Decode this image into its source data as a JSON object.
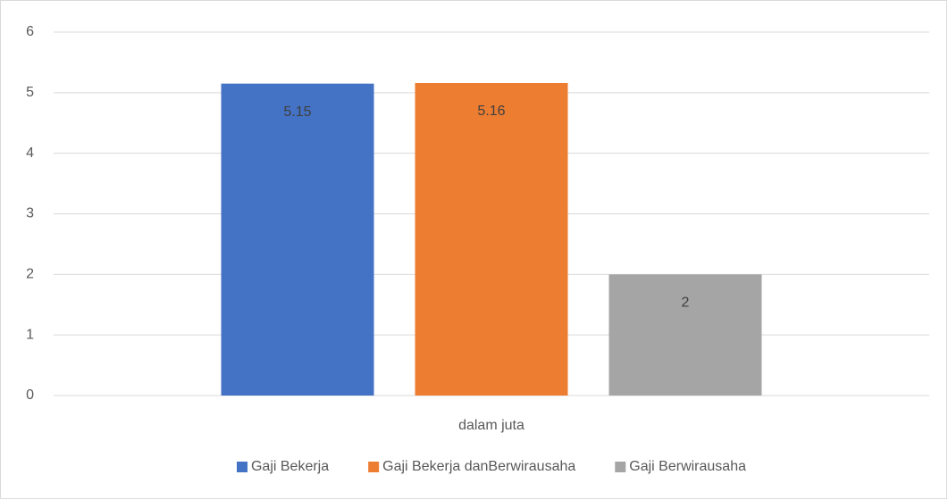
{
  "chart_data": {
    "type": "bar",
    "categories": [
      "dalam juta"
    ],
    "series": [
      {
        "name": "Gaji Bekerja",
        "color": "#4472c4",
        "values": [
          5.15
        ]
      },
      {
        "name": "Gaji Bekerja danBerwirausaha",
        "color": "#ed7d31",
        "values": [
          5.16
        ]
      },
      {
        "name": "Gaji Berwirausaha",
        "color": "#a5a5a5",
        "values": [
          2
        ]
      }
    ],
    "ylim": [
      0,
      6
    ],
    "yticks": [
      0,
      1,
      2,
      3,
      4,
      5,
      6
    ],
    "grid": true,
    "data_labels": true,
    "legend": "bottom"
  }
}
